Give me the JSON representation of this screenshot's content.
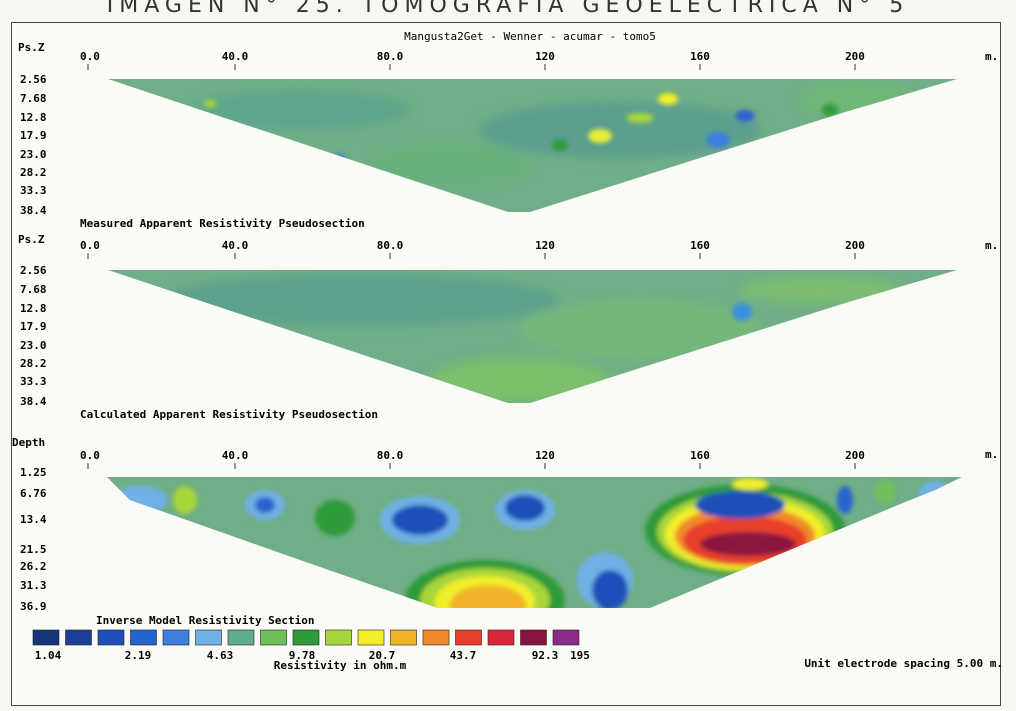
{
  "header_text": "IMAGEN N° 25. TOMOGRAFÍA GEOELÉCTRICA N° 5",
  "figure_title": "Mangusta2Get - Wenner - acumar - tomo5",
  "unit_label": "m.",
  "sections": [
    {
      "name": "measured",
      "ylabel": "Ps.Z",
      "xticks": [
        "0.0",
        "40.0",
        "80.0",
        "120",
        "160",
        "200"
      ],
      "yticks": [
        "2.56",
        "7.68",
        "12.8",
        "17.9",
        "23.0",
        "28.2",
        "33.3",
        "38.4"
      ],
      "caption": "Measured Apparent Resistivity Pseudosection"
    },
    {
      "name": "calculated",
      "ylabel": "Ps.Z",
      "xticks": [
        "0.0",
        "40.0",
        "80.0",
        "120",
        "160",
        "200"
      ],
      "yticks": [
        "2.56",
        "7.68",
        "12.8",
        "17.9",
        "23.0",
        "28.2",
        "33.3",
        "38.4"
      ],
      "caption": "Calculated Apparent Resistivity Pseudosection"
    },
    {
      "name": "inverse",
      "ylabel": "Depth",
      "xticks": [
        "0.0",
        "40.0",
        "80.0",
        "120",
        "160",
        "200"
      ],
      "yticks": [
        "1.25",
        "6.76",
        "13.4",
        "21.5",
        "26.2",
        "31.3",
        "36.9"
      ],
      "caption": "Inverse Model Resistivity Section"
    }
  ],
  "colorscale": {
    "colors": [
      "#16357a",
      "#1d3f9a",
      "#1f4fb8",
      "#2563cc",
      "#3c7fe0",
      "#6fb0e6",
      "#5fae8a",
      "#6fbf5a",
      "#2f9a3a",
      "#a7d63a",
      "#f2ee2a",
      "#f0b22a",
      "#f08a2a",
      "#e8402a",
      "#d82838",
      "#8a1440",
      "#8c2a8a"
    ],
    "labels": [
      "1.04",
      "2.19",
      "4.63",
      "9.78",
      "20.7",
      "43.7",
      "92.3",
      "195"
    ],
    "title": "Resistivity in ohm.m"
  },
  "footer_note": "Unit electrode spacing 5.00 m."
}
